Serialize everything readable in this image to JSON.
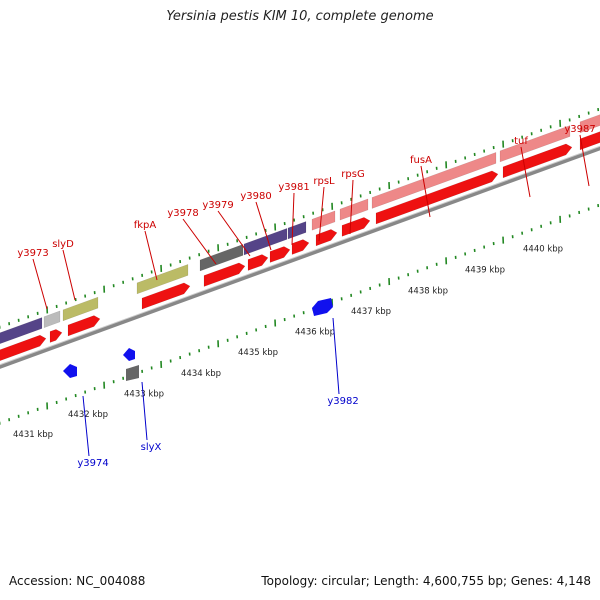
{
  "title": "Yersinia pestis KIM 10, complete genome",
  "footer": {
    "accession": "Accession: NC_004088",
    "summary": "Topology: circular; Length: 4,600,755 bp; Genes: 4,148"
  },
  "colors": {
    "backbone": "#888888",
    "cds": "#ee1111",
    "ruler_tick": "#228822",
    "label_forward": "#cc0000",
    "label_reverse": "#0000cc",
    "reverse_gene": "#1111ee",
    "cog_purple": "#554488",
    "cog_olive": "#bbbb66",
    "cog_gray": "#666666",
    "cog_lightgray": "#bbbbbb",
    "cog_pink": "#ee8888"
  },
  "scale_labels": [
    "4431 kbp",
    "4432 kbp",
    "4433 kbp",
    "4434 kbp",
    "4435 kbp",
    "4436 kbp",
    "4437 kbp",
    "4438 kbp",
    "4439 kbp",
    "4440 kbp"
  ],
  "forward_genes": [
    {
      "name": "y3973"
    },
    {
      "name": "slyD"
    },
    {
      "name": "fkpA"
    },
    {
      "name": "y3978"
    },
    {
      "name": "y3979"
    },
    {
      "name": "y3980"
    },
    {
      "name": "y3981"
    },
    {
      "name": "rpsL"
    },
    {
      "name": "rpsG"
    },
    {
      "name": "fusA"
    },
    {
      "name": "tuf"
    },
    {
      "name": "y3987"
    }
  ],
  "reverse_genes": [
    {
      "name": "y3974"
    },
    {
      "name": "slyX"
    },
    {
      "name": "y3982"
    }
  ]
}
